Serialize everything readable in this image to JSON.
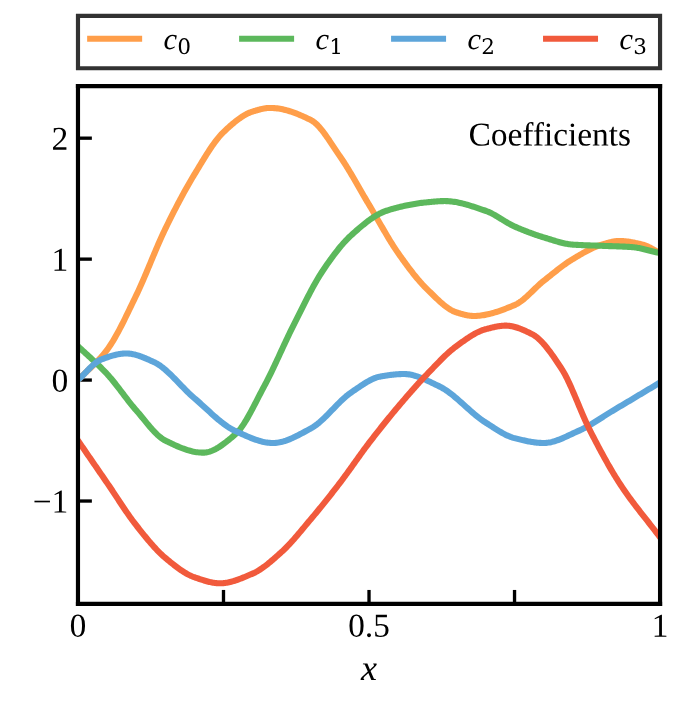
{
  "chart_data": {
    "type": "line",
    "xlabel": "x",
    "annotations": [
      "Coefficients"
    ],
    "xlim": [
      0,
      1
    ],
    "ylim": [
      -1.85,
      2.43
    ],
    "xticks": [
      0,
      {
        "value": 0.25,
        "label": null
      },
      0.5,
      {
        "value": 0.75,
        "label": null
      },
      1
    ],
    "yticks": [
      {
        "value": -1,
        "label": "−1"
      },
      0,
      1,
      2
    ],
    "legend": "top",
    "grid": false,
    "series": [
      {
        "name": "c$_{0}$",
        "color": "#ff9e4a",
        "x": [
          0,
          0.05,
          0.1,
          0.15,
          0.2,
          0.25,
          0.3,
          0.33,
          0.4,
          0.45,
          0.5,
          0.55,
          0.6,
          0.65,
          0.68,
          0.75,
          0.8,
          0.85,
          0.9,
          0.93,
          0.97,
          1
        ],
        "values": [
          0,
          0.25,
          0.7,
          1.25,
          1.7,
          2.05,
          2.22,
          2.25,
          2.15,
          1.85,
          1.45,
          1.05,
          0.75,
          0.56,
          0.53,
          0.62,
          0.82,
          1.0,
          1.12,
          1.15,
          1.12,
          1.05
        ]
      },
      {
        "name": "c$_{1}$",
        "color": "#5cb85c",
        "x": [
          0,
          0.05,
          0.1,
          0.15,
          0.215,
          0.27,
          0.32,
          0.37,
          0.42,
          0.47,
          0.53,
          0.6,
          0.63,
          0.7,
          0.75,
          0.8,
          0.85,
          0.9,
          0.95,
          1
        ],
        "values": [
          0.28,
          0.05,
          -0.25,
          -0.5,
          -0.6,
          -0.45,
          -0.05,
          0.45,
          0.9,
          1.2,
          1.4,
          1.47,
          1.48,
          1.4,
          1.27,
          1.18,
          1.12,
          1.11,
          1.1,
          1.05
        ]
      },
      {
        "name": "c$_{2}$",
        "color": "#5da5da",
        "x": [
          0,
          0.04,
          0.083,
          0.13,
          0.2,
          0.27,
          0.335,
          0.4,
          0.47,
          0.52,
          0.56,
          0.62,
          0.7,
          0.75,
          0.8,
          0.86,
          0.92,
          1
        ],
        "values": [
          0,
          0.17,
          0.22,
          0.15,
          -0.15,
          -0.42,
          -0.52,
          -0.4,
          -0.1,
          0.03,
          0.05,
          -0.05,
          -0.35,
          -0.48,
          -0.52,
          -0.42,
          -0.25,
          -0.02
        ]
      },
      {
        "name": "c$_{3}$",
        "color": "#f15a3c",
        "x": [
          0,
          0.05,
          0.1,
          0.15,
          0.2,
          0.244,
          0.3,
          0.35,
          0.4,
          0.45,
          0.5,
          0.55,
          0.6,
          0.65,
          0.7,
          0.735,
          0.78,
          0.83,
          0.88,
          0.93,
          1
        ],
        "values": [
          -0.5,
          -0.85,
          -1.2,
          -1.47,
          -1.63,
          -1.68,
          -1.6,
          -1.42,
          -1.15,
          -0.85,
          -0.52,
          -0.22,
          0.05,
          0.28,
          0.42,
          0.45,
          0.38,
          0.1,
          -0.42,
          -0.85,
          -1.3
        ]
      }
    ]
  }
}
